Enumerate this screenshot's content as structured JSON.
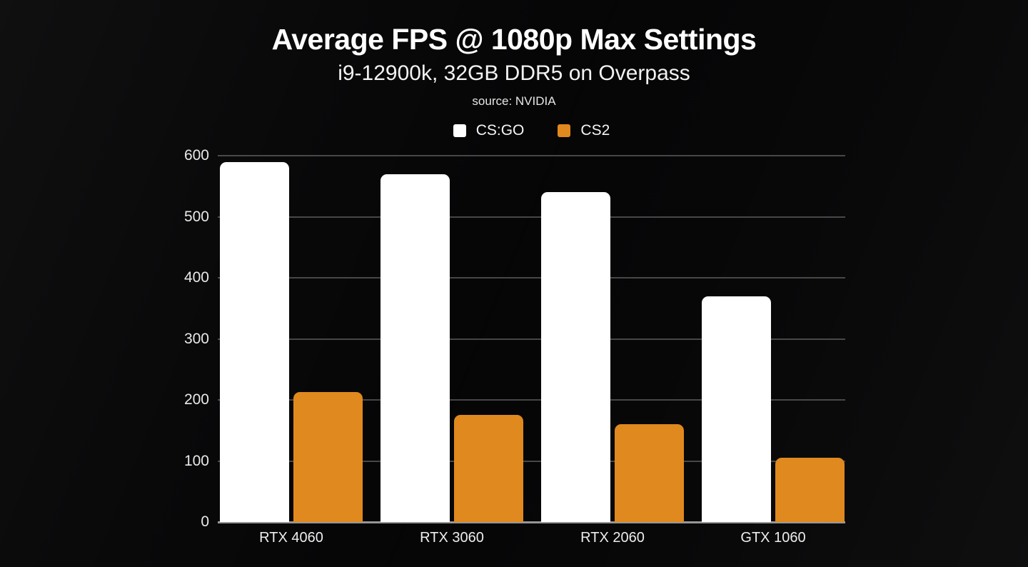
{
  "header": {
    "title": "Average FPS @ 1080p Max Settings",
    "subtitle": "i9-12900k, 32GB DDR5 on Overpass",
    "source": "source: NVIDIA"
  },
  "colors": {
    "background": "#050506",
    "csgo_bar": "#ffffff",
    "cs2_bar": "#e0891e",
    "gridline": "rgba(255,255,255,0.26)",
    "baseline": "rgba(255,255,255,0.58)",
    "text": "#ffffff"
  },
  "chart_data": {
    "type": "bar",
    "title": "Average FPS @ 1080p Max Settings",
    "subtitle": "i9-12900k, 32GB DDR5 on Overpass",
    "source_note": "source: NVIDIA",
    "categories": [
      "RTX 4060",
      "RTX 3060",
      "RTX 2060",
      "GTX 1060"
    ],
    "series": [
      {
        "name": "CS:GO",
        "color": "#ffffff",
        "values": [
          590,
          570,
          540,
          370
        ]
      },
      {
        "name": "CS2",
        "color": "#e0891e",
        "values": [
          213,
          175,
          160,
          105
        ]
      }
    ],
    "xlabel": "",
    "ylabel": "",
    "ylim": [
      0,
      600
    ],
    "yticks": [
      0,
      100,
      200,
      300,
      400,
      500,
      600
    ],
    "grid": true,
    "grid_direction": "horizontal",
    "legend_position": "top-center"
  }
}
